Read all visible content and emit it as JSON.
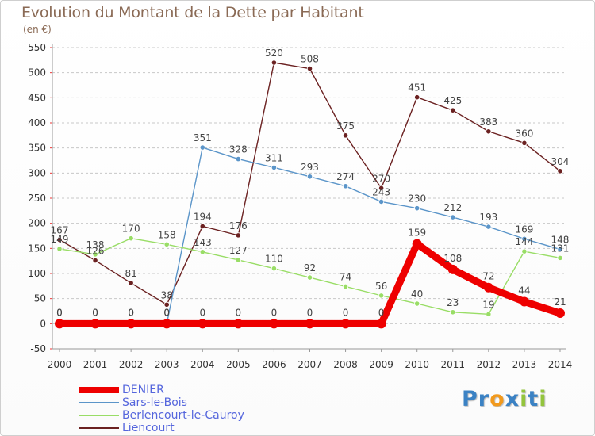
{
  "header": {
    "title": "Evolution du Montant de la Dette par Habitant",
    "unit": "(en €)"
  },
  "colors": {
    "DENIER": "#ee0000",
    "Sars-le-Bois": "#5b95c9",
    "Berlencourt-le-Cauroy": "#99dd66",
    "Liencourt": "#6b2121",
    "axis_text": "#333333",
    "grid": "#c8c8c8",
    "title": "#8a6a55",
    "legend_text": "#5566dd"
  },
  "logo": {
    "letters": [
      "P",
      "r",
      "o",
      "x",
      "i",
      "t",
      "i"
    ],
    "colors": [
      "#3b82c4",
      "#3b82c4",
      "#f29a1d",
      "#3b82c4",
      "#93c43d",
      "#3b82c4",
      "#93c43d"
    ]
  },
  "chart_data": {
    "type": "line",
    "title": "Evolution du Montant de la Dette par Habitant",
    "ylabel": "(en €)",
    "xlabel": "",
    "x": [
      2000,
      2001,
      2002,
      2003,
      2004,
      2005,
      2006,
      2007,
      2008,
      2009,
      2010,
      2011,
      2012,
      2013,
      2014
    ],
    "ylim": [
      -50,
      550
    ],
    "yticks": [
      -50,
      0,
      50,
      100,
      150,
      200,
      250,
      300,
      350,
      400,
      450,
      500,
      550
    ],
    "grid": "horizontal dashed",
    "legend_position": "bottom-left",
    "series": [
      {
        "name": "Liencourt",
        "values": [
          167,
          126,
          81,
          38,
          194,
          176,
          520,
          508,
          375,
          270,
          451,
          425,
          383,
          360,
          304
        ]
      },
      {
        "name": "Sars-le-Bois",
        "values": [
          0,
          0,
          0,
          0,
          351,
          328,
          311,
          293,
          274,
          243,
          230,
          212,
          193,
          169,
          148
        ]
      },
      {
        "name": "Berlencourt-le-Cauroy",
        "values": [
          149,
          138,
          170,
          158,
          143,
          127,
          110,
          92,
          74,
          56,
          40,
          23,
          19,
          144,
          131
        ]
      },
      {
        "name": "DENIER",
        "values": [
          0,
          0,
          0,
          0,
          0,
          0,
          0,
          0,
          0,
          0,
          159,
          108,
          72,
          44,
          21
        ]
      }
    ]
  }
}
